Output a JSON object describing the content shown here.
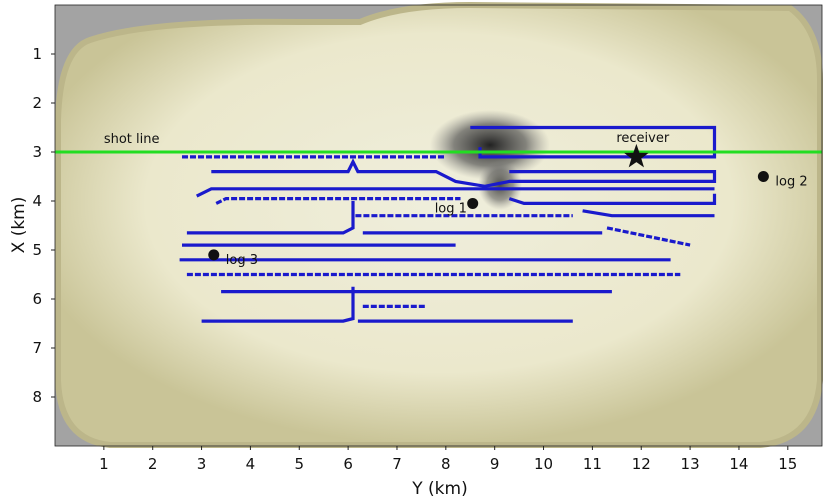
{
  "chart_data": {
    "type": "scatter",
    "title": "",
    "xlabel": "Y (km)",
    "ylabel": "X (km)",
    "xlim": [
      0,
      15.7
    ],
    "ylim": [
      9.0,
      0
    ],
    "y_inverted": true,
    "xticks": [
      "1",
      "2",
      "3",
      "4",
      "5",
      "6",
      "7",
      "8",
      "9",
      "10",
      "11",
      "12",
      "13",
      "14",
      "15"
    ],
    "yticks": [
      "1",
      "2",
      "3",
      "4",
      "5",
      "6",
      "7",
      "8"
    ],
    "grid": false,
    "background": "seismic velocity model image (greyscale/olive)",
    "colors": {
      "shot_line": "#22dd22",
      "well_paths": "#1a1acc",
      "markers": "#111111",
      "model_fill": "#e9e6c7",
      "model_rim": "#cfcaa0",
      "outside": "#9a9a9a"
    },
    "shot_line": {
      "x_km": 3.0,
      "label": "shot line"
    },
    "receiver": {
      "y_km": 11.9,
      "x_km": 3.1,
      "label": "receiver",
      "marker": "star"
    },
    "logs": [
      {
        "label": "log 1",
        "y_km": 8.55,
        "x_km": 4.05
      },
      {
        "label": "log 2",
        "y_km": 14.5,
        "x_km": 3.5
      },
      {
        "label": "log 3",
        "y_km": 3.25,
        "x_km": 5.1
      }
    ],
    "well_paths": [
      {
        "points": [
          [
            8.5,
            2.5
          ],
          [
            13.5,
            2.5
          ],
          [
            13.5,
            3.1
          ],
          [
            8.7,
            3.1
          ],
          [
            8.7,
            2.9
          ]
        ]
      },
      {
        "points": [
          [
            2.6,
            3.1
          ],
          [
            8.0,
            3.1
          ]
        ]
      },
      {
        "points": [
          [
            3.2,
            3.4
          ],
          [
            6.0,
            3.4
          ],
          [
            6.1,
            3.2
          ],
          [
            6.2,
            3.4
          ],
          [
            7.8,
            3.4
          ],
          [
            8.2,
            3.6
          ],
          [
            8.8,
            3.7
          ],
          [
            9.3,
            3.6
          ],
          [
            13.5,
            3.6
          ],
          [
            13.5,
            3.4
          ],
          [
            9.3,
            3.4
          ]
        ]
      },
      {
        "points": [
          [
            2.9,
            3.9
          ],
          [
            3.2,
            3.75
          ],
          [
            13.5,
            3.75
          ]
        ]
      },
      {
        "points": [
          [
            3.3,
            4.05
          ],
          [
            3.5,
            3.95
          ],
          [
            8.3,
            3.95
          ]
        ]
      },
      {
        "points": [
          [
            9.3,
            3.95
          ],
          [
            9.6,
            4.05
          ],
          [
            13.5,
            4.05
          ],
          [
            13.5,
            3.85
          ]
        ]
      },
      {
        "points": [
          [
            6.1,
            4.0
          ],
          [
            6.1,
            4.55
          ],
          [
            5.9,
            4.65
          ],
          [
            2.7,
            4.65
          ]
        ]
      },
      {
        "points": [
          [
            6.15,
            4.3
          ],
          [
            10.6,
            4.3
          ]
        ]
      },
      {
        "points": [
          [
            10.8,
            4.2
          ],
          [
            11.4,
            4.3
          ],
          [
            13.5,
            4.3
          ]
        ]
      },
      {
        "points": [
          [
            6.3,
            4.65
          ],
          [
            11.2,
            4.65
          ]
        ]
      },
      {
        "points": [
          [
            11.3,
            4.55
          ],
          [
            13.0,
            4.9
          ]
        ]
      },
      {
        "points": [
          [
            2.6,
            4.9
          ],
          [
            8.2,
            4.9
          ]
        ]
      },
      {
        "points": [
          [
            2.55,
            5.2
          ],
          [
            12.6,
            5.2
          ]
        ]
      },
      {
        "points": [
          [
            2.7,
            5.5
          ],
          [
            12.8,
            5.5
          ]
        ]
      },
      {
        "points": [
          [
            3.4,
            5.85
          ],
          [
            11.4,
            5.85
          ]
        ]
      },
      {
        "points": [
          [
            6.1,
            5.75
          ],
          [
            6.1,
            6.4
          ],
          [
            5.9,
            6.45
          ],
          [
            3.0,
            6.45
          ]
        ]
      },
      {
        "points": [
          [
            6.3,
            6.15
          ],
          [
            7.6,
            6.15
          ]
        ]
      },
      {
        "points": [
          [
            6.2,
            6.45
          ],
          [
            10.6,
            6.45
          ]
        ]
      }
    ]
  }
}
